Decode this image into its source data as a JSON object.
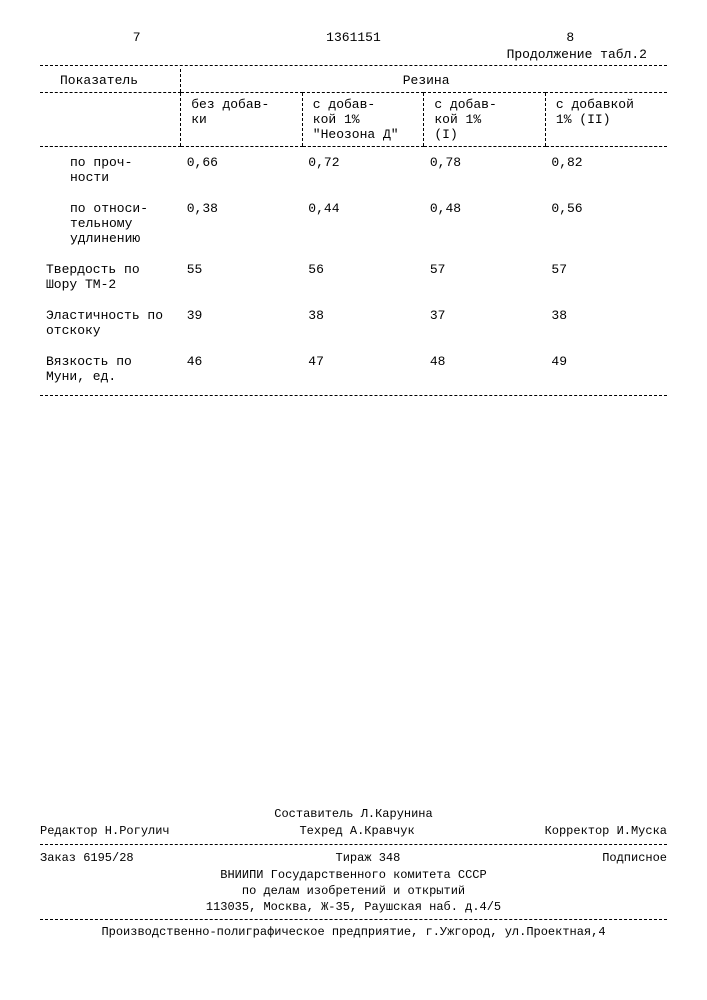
{
  "page_left": "7",
  "doc_number": "1361151",
  "page_right": "8",
  "continuation": "Продолжение табл.2",
  "table": {
    "header_col1": "Показатель",
    "header_span": "Резина",
    "subheaders": [
      "без добав-\nки",
      "с добав-\nкой 1%\n\"Неозона Д\"",
      "с добав-\nкой 1%\n(I)",
      "с добавкой\n1% (II)"
    ],
    "rows": [
      {
        "label": "по проч-\nности",
        "indent": true,
        "values": [
          "0,66",
          "0,72",
          "0,78",
          "0,82"
        ]
      },
      {
        "label": "по относи-\nтельному\nудлинению",
        "indent": true,
        "values": [
          "0,38",
          "0,44",
          "0,48",
          "0,56"
        ]
      },
      {
        "label": "Твердость по\nШору ТМ-2",
        "indent": false,
        "values": [
          "55",
          "56",
          "57",
          "57"
        ]
      },
      {
        "label": "Эластичность по\nотскоку",
        "indent": false,
        "values": [
          "39",
          "38",
          "37",
          "38"
        ]
      },
      {
        "label": "Вязкость по\nМуни, ед.",
        "indent": false,
        "values": [
          "46",
          "47",
          "48",
          "49"
        ]
      }
    ]
  },
  "footer": {
    "composer": "Составитель Л.Карунина",
    "editor": "Редактор Н.Рогулич",
    "tech": "Техред А.Кравчук",
    "corrector": "Корректор И.Муска",
    "order": "Заказ 6195/28",
    "tirage": "Тираж 348",
    "signed": "Подписное",
    "line1": "ВНИИПИ Государственного комитета СССР",
    "line2": "по делам изобретений и открытий",
    "line3": "113035, Москва, Ж-35, Раушская наб. д.4/5",
    "line4": "Производственно-полиграфическое предприятие, г.Ужгород, ул.Проектная,4"
  }
}
